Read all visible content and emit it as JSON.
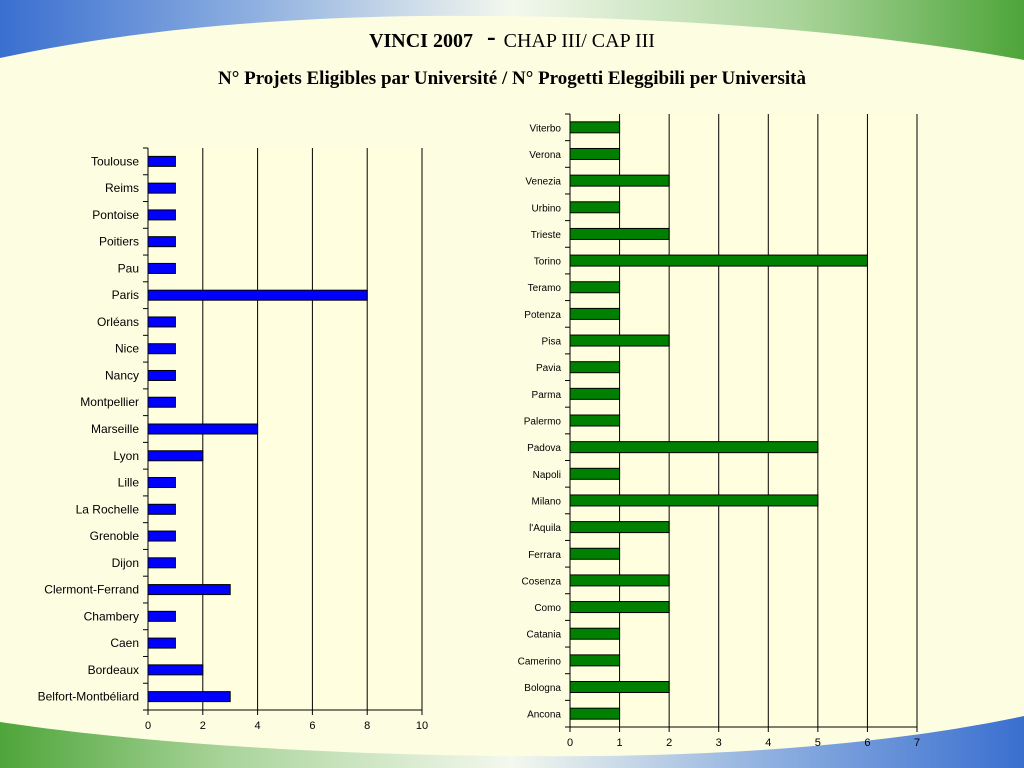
{
  "slide": {
    "title_main": "VINCI 2007",
    "title_dash": "-",
    "title_sub": "CHAP III/ CAP III",
    "subtitle": "N° Projets Eligibles par Université / N° Progetti Eleggibili per Università"
  },
  "colors": {
    "background": "#fdfde2",
    "plot_bg": "#ffffe0",
    "france_bar": "#0000ff",
    "italy_bar": "#008000",
    "banner_blue": "#3a6fd0",
    "banner_green": "#5aaa44"
  },
  "chart_data": [
    {
      "type": "bar",
      "orientation": "horizontal",
      "categories": [
        "Belfort-Montbéliard",
        "Bordeaux",
        "Caen",
        "Chambery",
        "Clermont-Ferrand",
        "Dijon",
        "Grenoble",
        "La Rochelle",
        "Lille",
        "Lyon",
        "Marseille",
        "Montpellier",
        "Nancy",
        "Nice",
        "Orléans",
        "Paris",
        "Pau",
        "Poitiers",
        "Pontoise",
        "Reims",
        "Toulouse"
      ],
      "values": [
        3,
        2,
        1,
        1,
        3,
        1,
        1,
        1,
        1,
        2,
        4,
        1,
        1,
        1,
        1,
        8,
        1,
        1,
        1,
        1,
        1
      ],
      "xlim": [
        0,
        10
      ],
      "xticks": [
        0,
        2,
        4,
        6,
        8,
        10
      ],
      "grid": "vertical",
      "color": "#0000ff",
      "title": "",
      "xlabel": "",
      "ylabel": ""
    },
    {
      "type": "bar",
      "orientation": "horizontal",
      "categories": [
        "Ancona",
        "Bologna",
        "Camerino",
        "Catania",
        "Como",
        "Cosenza",
        "Ferrara",
        "l'Aquila",
        "Milano",
        "Napoli",
        "Padova",
        "Palermo",
        "Parma",
        "Pavia",
        "Pisa",
        "Potenza",
        "Teramo",
        "Torino",
        "Trieste",
        "Urbino",
        "Venezia",
        "Verona",
        "Viterbo"
      ],
      "values": [
        1,
        2,
        1,
        1,
        2,
        2,
        1,
        2,
        5,
        1,
        5,
        1,
        1,
        1,
        2,
        1,
        1,
        6,
        2,
        1,
        2,
        1,
        1
      ],
      "xlim": [
        0,
        7
      ],
      "xticks": [
        0,
        1,
        2,
        3,
        4,
        5,
        6,
        7
      ],
      "grid": "vertical",
      "color": "#008000",
      "title": "",
      "xlabel": "",
      "ylabel": ""
    }
  ]
}
